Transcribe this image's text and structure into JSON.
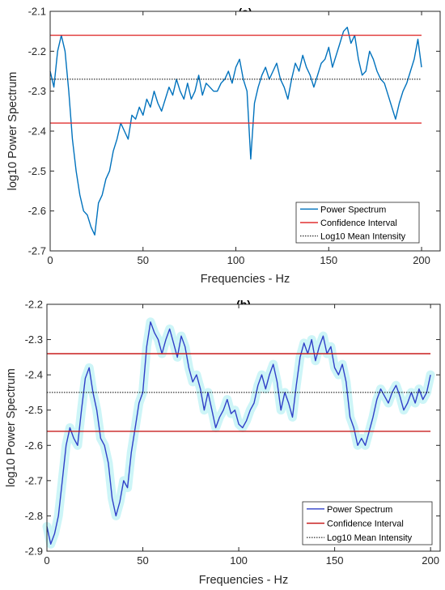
{
  "chart_data": [
    {
      "type": "line",
      "title": "(a)",
      "xlabel": "Frequencies - Hz",
      "ylabel": "log10 Power Spectrum",
      "xlim": [
        0,
        210
      ],
      "ylim": [
        -2.7,
        -2.1
      ],
      "xticks": [
        0,
        50,
        100,
        150,
        200
      ],
      "xtick_labels": [
        "0",
        "50",
        "100",
        "150",
        "200"
      ],
      "yticks": [
        -2.7,
        -2.6,
        -2.5,
        -2.4,
        -2.3,
        -2.2,
        -2.1
      ],
      "ytick_labels": [
        "-2.7",
        "-2.6",
        "-2.5",
        "-2.4",
        "-2.3",
        "-2.2",
        "-2.1"
      ],
      "grid": false,
      "legend_position": "bottom-right",
      "series": [
        {
          "name": "Power Spectrum",
          "color": "#0072BD",
          "style": "solid",
          "x": [
            0,
            2,
            4,
            6,
            8,
            10,
            12,
            14,
            16,
            18,
            20,
            22,
            24,
            26,
            28,
            30,
            32,
            34,
            36,
            38,
            40,
            42,
            44,
            46,
            48,
            50,
            52,
            54,
            56,
            58,
            60,
            62,
            64,
            66,
            68,
            70,
            72,
            74,
            76,
            78,
            80,
            82,
            84,
            86,
            88,
            90,
            92,
            94,
            96,
            98,
            100,
            102,
            104,
            106,
            108,
            110,
            112,
            114,
            116,
            118,
            120,
            122,
            124,
            126,
            128,
            130,
            132,
            134,
            136,
            138,
            140,
            142,
            144,
            146,
            148,
            150,
            152,
            154,
            156,
            158,
            160,
            162,
            164,
            166,
            168,
            170,
            172,
            174,
            176,
            178,
            180,
            182,
            184,
            186,
            188,
            190,
            192,
            194,
            196,
            198,
            200
          ],
          "y": [
            -2.25,
            -2.29,
            -2.2,
            -2.16,
            -2.2,
            -2.3,
            -2.42,
            -2.5,
            -2.56,
            -2.6,
            -2.61,
            -2.64,
            -2.66,
            -2.58,
            -2.56,
            -2.52,
            -2.5,
            -2.45,
            -2.42,
            -2.38,
            -2.4,
            -2.42,
            -2.36,
            -2.37,
            -2.34,
            -2.36,
            -2.32,
            -2.34,
            -2.3,
            -2.33,
            -2.35,
            -2.32,
            -2.29,
            -2.31,
            -2.27,
            -2.3,
            -2.32,
            -2.28,
            -2.32,
            -2.3,
            -2.26,
            -2.31,
            -2.28,
            -2.29,
            -2.3,
            -2.3,
            -2.28,
            -2.27,
            -2.25,
            -2.28,
            -2.24,
            -2.22,
            -2.27,
            -2.3,
            -2.47,
            -2.33,
            -2.29,
            -2.26,
            -2.24,
            -2.27,
            -2.25,
            -2.23,
            -2.27,
            -2.29,
            -2.32,
            -2.27,
            -2.23,
            -2.25,
            -2.21,
            -2.24,
            -2.26,
            -2.29,
            -2.26,
            -2.23,
            -2.22,
            -2.19,
            -2.24,
            -2.21,
            -2.18,
            -2.15,
            -2.14,
            -2.18,
            -2.16,
            -2.22,
            -2.26,
            -2.25,
            -2.2,
            -2.22,
            -2.25,
            -2.27,
            -2.28,
            -2.31,
            -2.34,
            -2.37,
            -2.33,
            -2.3,
            -2.28,
            -2.25,
            -2.22,
            -2.17,
            -2.24
          ]
        },
        {
          "name": "Confidence Interval",
          "color": "#E03030",
          "style": "solid",
          "x": [
            0,
            200
          ],
          "y": [
            -2.16,
            -2.16
          ]
        },
        {
          "name": "",
          "color": "#E03030",
          "style": "solid",
          "x": [
            0,
            200
          ],
          "y": [
            -2.38,
            -2.38
          ]
        },
        {
          "name": "Log10 Mean Intensity",
          "color": "#000000",
          "style": "dotted",
          "x": [
            0,
            200
          ],
          "y": [
            -2.27,
            -2.27
          ]
        }
      ]
    },
    {
      "type": "line",
      "title": "(b)",
      "xlabel": "Frequencies - Hz",
      "ylabel": "log10 Power Spectrum",
      "xlim": [
        0,
        205
      ],
      "ylim": [
        -2.9,
        -2.2
      ],
      "xticks": [
        0,
        50,
        100,
        150,
        200
      ],
      "xtick_labels": [
        "0",
        "50",
        "100",
        "150",
        "200"
      ],
      "yticks": [
        -2.9,
        -2.8,
        -2.7,
        -2.6,
        -2.5,
        -2.4,
        -2.3,
        -2.2
      ],
      "ytick_labels": [
        "-2.9",
        "-2.8",
        "-2.7",
        "-2.6",
        "-2.5",
        "-2.4",
        "-2.3",
        "-2.2"
      ],
      "grid": false,
      "legend_position": "bottom-right",
      "series": [
        {
          "name": "Power Spectrum",
          "color": "#3040C8",
          "style": "solid",
          "shade_color": "#C8F4F6",
          "x": [
            0,
            2,
            4,
            6,
            8,
            10,
            12,
            14,
            16,
            18,
            20,
            22,
            24,
            26,
            28,
            30,
            32,
            34,
            36,
            38,
            40,
            42,
            44,
            46,
            48,
            50,
            52,
            54,
            56,
            58,
            60,
            62,
            64,
            66,
            68,
            70,
            72,
            74,
            76,
            78,
            80,
            82,
            84,
            86,
            88,
            90,
            92,
            94,
            96,
            98,
            100,
            102,
            104,
            106,
            108,
            110,
            112,
            114,
            116,
            118,
            120,
            122,
            124,
            126,
            128,
            130,
            132,
            134,
            136,
            138,
            140,
            142,
            144,
            146,
            148,
            150,
            152,
            154,
            156,
            158,
            160,
            162,
            164,
            166,
            168,
            170,
            172,
            174,
            176,
            178,
            180,
            182,
            184,
            186,
            188,
            190,
            192,
            194,
            196,
            198,
            200
          ],
          "y": [
            -2.83,
            -2.88,
            -2.85,
            -2.8,
            -2.7,
            -2.6,
            -2.55,
            -2.58,
            -2.6,
            -2.5,
            -2.41,
            -2.38,
            -2.45,
            -2.5,
            -2.58,
            -2.6,
            -2.65,
            -2.75,
            -2.8,
            -2.76,
            -2.7,
            -2.72,
            -2.62,
            -2.55,
            -2.48,
            -2.45,
            -2.32,
            -2.25,
            -2.28,
            -2.3,
            -2.34,
            -2.3,
            -2.27,
            -2.31,
            -2.35,
            -2.29,
            -2.32,
            -2.38,
            -2.42,
            -2.4,
            -2.44,
            -2.5,
            -2.45,
            -2.5,
            -2.55,
            -2.52,
            -2.5,
            -2.47,
            -2.51,
            -2.5,
            -2.54,
            -2.55,
            -2.53,
            -2.5,
            -2.48,
            -2.43,
            -2.4,
            -2.44,
            -2.4,
            -2.37,
            -2.42,
            -2.5,
            -2.45,
            -2.48,
            -2.52,
            -2.43,
            -2.35,
            -2.31,
            -2.34,
            -2.3,
            -2.36,
            -2.32,
            -2.29,
            -2.34,
            -2.32,
            -2.38,
            -2.4,
            -2.37,
            -2.42,
            -2.52,
            -2.55,
            -2.6,
            -2.58,
            -2.6,
            -2.56,
            -2.52,
            -2.47,
            -2.44,
            -2.46,
            -2.48,
            -2.45,
            -2.43,
            -2.46,
            -2.5,
            -2.48,
            -2.45,
            -2.48,
            -2.44,
            -2.47,
            -2.45,
            -2.4
          ]
        },
        {
          "name": "Confidence Interval",
          "color": "#C81E1E",
          "style": "solid",
          "x": [
            0,
            200
          ],
          "y": [
            -2.34,
            -2.34
          ]
        },
        {
          "name": "",
          "color": "#C81E1E",
          "style": "solid",
          "x": [
            0,
            200
          ],
          "y": [
            -2.56,
            -2.56
          ]
        },
        {
          "name": "Log10 Mean Intensity",
          "color": "#000000",
          "style": "dotted",
          "x": [
            0,
            200
          ],
          "y": [
            -2.45,
            -2.45
          ]
        }
      ]
    }
  ]
}
